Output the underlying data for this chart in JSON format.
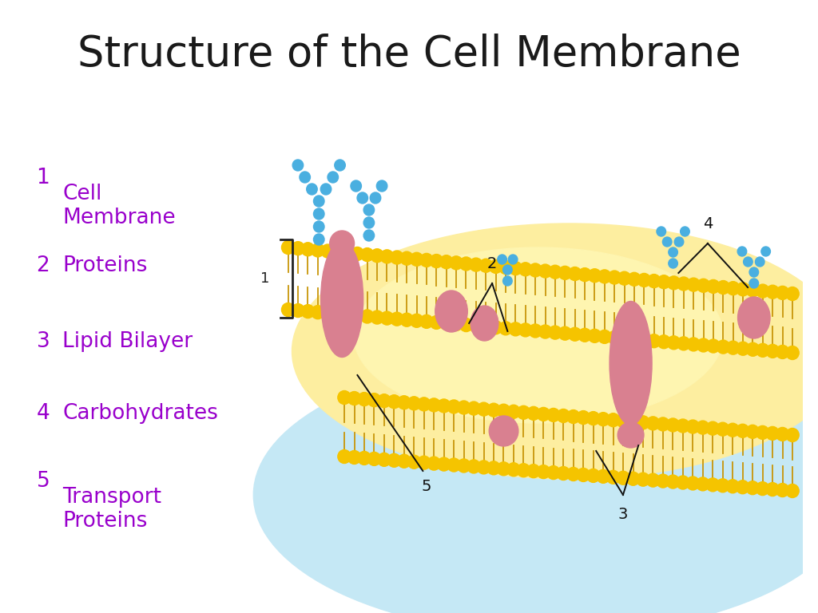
{
  "title": "Structure of the Cell Membrane",
  "title_color": "#1a1a1a",
  "title_fontsize": 38,
  "bg_color": "#ffffff",
  "list_items": [
    {
      "num": "1",
      "text": "Cell\nMembrane"
    },
    {
      "num": "2",
      "text": "Proteins"
    },
    {
      "num": "3",
      "text": "Lipid Bilayer"
    },
    {
      "num": "4",
      "text": "Carbohydrates"
    },
    {
      "num": "5",
      "text": "Transport\nProteins"
    }
  ],
  "list_color": "#9900CC",
  "list_fontsize": 19,
  "head_color": "#F5C400",
  "tail_color": "#C8960A",
  "protein_color": "#D98090",
  "carb_color": "#4AAFE0",
  "ann_color": "#111111"
}
